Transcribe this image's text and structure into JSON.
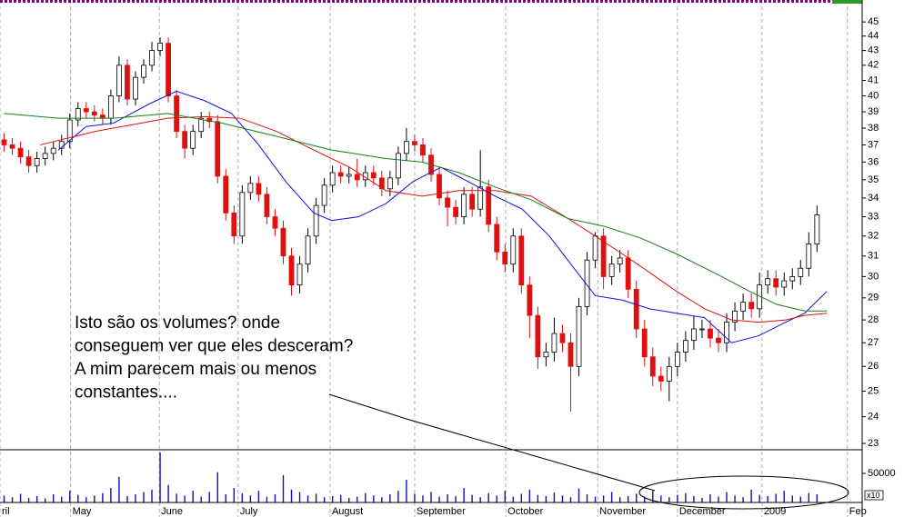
{
  "chart_data": [
    {
      "type": "candlestick",
      "log_y": true,
      "xlim": [
        -0.5,
        104.5
      ],
      "ylim": [
        22.77,
        46.6
      ],
      "yticks": [
        23,
        24,
        25,
        26,
        27,
        28,
        29,
        30,
        31,
        32,
        33,
        34,
        35,
        36,
        37,
        38,
        39,
        40,
        41,
        42,
        43,
        44,
        45
      ],
      "up_color": "#ffffff",
      "down_color": "#e01010",
      "ohlc": [
        [
          37.3,
          37.7,
          36.6,
          37
        ],
        [
          37,
          37.4,
          36.4,
          36.8
        ],
        [
          36.8,
          37.2,
          35.9,
          36.3
        ],
        [
          36.3,
          36.7,
          35.4,
          35.8
        ],
        [
          35.8,
          36.6,
          35.4,
          36.2
        ],
        [
          36.2,
          36.9,
          35.8,
          36.5
        ],
        [
          36.5,
          37.2,
          36.1,
          36.8
        ],
        [
          36.8,
          37.6,
          36.4,
          37.2
        ],
        [
          37.2,
          38.9,
          36.8,
          38.5
        ],
        [
          38.5,
          39.6,
          38.1,
          39.2
        ],
        [
          39.2,
          39.6,
          38.6,
          39
        ],
        [
          39,
          39.4,
          38.4,
          38.8
        ],
        [
          38.8,
          39.2,
          38.2,
          38.6
        ],
        [
          38.6,
          40.4,
          38.2,
          40
        ],
        [
          40,
          42.6,
          39.6,
          42
        ],
        [
          42,
          42.4,
          39.4,
          39.8
        ],
        [
          39.8,
          41.6,
          39.4,
          41.2
        ],
        [
          41.2,
          42.4,
          40.8,
          42
        ],
        [
          42,
          43.6,
          41.6,
          43
        ],
        [
          43,
          43.9,
          42.6,
          43.5
        ],
        [
          43.5,
          43.9,
          39.6,
          40
        ],
        [
          40,
          40.4,
          37.4,
          37.8
        ],
        [
          37.8,
          38.2,
          36.2,
          36.8
        ],
        [
          36.8,
          38.2,
          36.4,
          37.8
        ],
        [
          37.8,
          39,
          37.4,
          38.6
        ],
        [
          38.6,
          39,
          38,
          38.4
        ],
        [
          38.4,
          38.8,
          34.8,
          35.2
        ],
        [
          35.2,
          35.6,
          32.8,
          33.2
        ],
        [
          33.2,
          33.6,
          31.6,
          32
        ],
        [
          32,
          34.7,
          31.6,
          34.3
        ],
        [
          34.3,
          35.2,
          33.9,
          34.8
        ],
        [
          34.8,
          35.2,
          33.8,
          34.2
        ],
        [
          34.2,
          34.6,
          32.6,
          33
        ],
        [
          33,
          33.4,
          32,
          32.4
        ],
        [
          32.4,
          32.8,
          30.6,
          31
        ],
        [
          31,
          31.4,
          29.1,
          29.6
        ],
        [
          29.6,
          31,
          29.2,
          30.6
        ],
        [
          30.6,
          32.4,
          30.2,
          32
        ],
        [
          32,
          34,
          31.6,
          33.6
        ],
        [
          33.6,
          35.1,
          33.2,
          34.7
        ],
        [
          34.7,
          35.8,
          34.3,
          35.4
        ],
        [
          35.4,
          35.8,
          34.8,
          35.2
        ],
        [
          35.2,
          35.7,
          34.8,
          35.3
        ],
        [
          35.3,
          36.2,
          34.6,
          35
        ],
        [
          35,
          35.8,
          34.6,
          35.4
        ],
        [
          35.4,
          35.8,
          34.7,
          35.1
        ],
        [
          35.1,
          35.5,
          34.1,
          34.5
        ],
        [
          34.5,
          35.5,
          34.1,
          35.1
        ],
        [
          35.1,
          36.9,
          34.7,
          36.5
        ],
        [
          36.5,
          38,
          36.1,
          37.2
        ],
        [
          37.2,
          37.6,
          36.6,
          37
        ],
        [
          37,
          37.4,
          36,
          36.4
        ],
        [
          36.4,
          36.8,
          34.9,
          35.3
        ],
        [
          35.3,
          35.7,
          33.6,
          34
        ],
        [
          34,
          34.4,
          32.5,
          33.5
        ],
        [
          33.5,
          33.9,
          32.6,
          33
        ],
        [
          33,
          34.6,
          32.6,
          34.2
        ],
        [
          34.2,
          34.6,
          33,
          33.4
        ],
        [
          33.4,
          36.7,
          33,
          34.6
        ],
        [
          34.6,
          35,
          32.2,
          32.6
        ],
        [
          32.6,
          33,
          30.8,
          31.2
        ],
        [
          31.2,
          31.6,
          30.2,
          30.6
        ],
        [
          30.6,
          32.4,
          30.2,
          32
        ],
        [
          32,
          32.4,
          29.2,
          29.6
        ],
        [
          29.6,
          30,
          27.2,
          28.2
        ],
        [
          28.2,
          28.6,
          25.9,
          26.4
        ],
        [
          26.4,
          27,
          26,
          26.6
        ],
        [
          26.6,
          28.1,
          26.2,
          27.4
        ],
        [
          27.4,
          27.8,
          26.6,
          27
        ],
        [
          27,
          27.4,
          24.2,
          26
        ],
        [
          26,
          29,
          25.6,
          28.6
        ],
        [
          28.6,
          31.2,
          28.2,
          30.8
        ],
        [
          30.8,
          32.2,
          30.4,
          32
        ],
        [
          32,
          32.4,
          29.4,
          30
        ],
        [
          30,
          31,
          29.6,
          30.6
        ],
        [
          30.6,
          31.3,
          30.2,
          30.9
        ],
        [
          30.9,
          31.3,
          29,
          29.4
        ],
        [
          29.4,
          29.8,
          27.2,
          27.6
        ],
        [
          27.6,
          28,
          26,
          26.4
        ],
        [
          26.4,
          26.8,
          25.2,
          25.6
        ],
        [
          25.6,
          26,
          25,
          25.4
        ],
        [
          25.4,
          26.4,
          24.6,
          26
        ],
        [
          26,
          27,
          25.6,
          26.6
        ],
        [
          26.6,
          27.5,
          26.2,
          27.1
        ],
        [
          27.1,
          28.2,
          26.7,
          27.6
        ],
        [
          27.6,
          28,
          27.2,
          27.6
        ],
        [
          27.6,
          28,
          26.8,
          27.2
        ],
        [
          27.2,
          27.6,
          26.6,
          27
        ],
        [
          27,
          28.3,
          26.6,
          27.9
        ],
        [
          27.9,
          28.8,
          27.5,
          28.4
        ],
        [
          28.4,
          29.2,
          28,
          28.8
        ],
        [
          28.8,
          29.2,
          28.1,
          28.5
        ],
        [
          28.5,
          30.2,
          28.1,
          29.6
        ],
        [
          29.6,
          30.3,
          29.2,
          29.9
        ],
        [
          29.9,
          30.3,
          29.1,
          29.5
        ],
        [
          29.5,
          30.2,
          29.1,
          29.8
        ],
        [
          29.8,
          30.4,
          29.4,
          30
        ],
        [
          30,
          30.8,
          29.6,
          30.4
        ],
        [
          30.4,
          32.2,
          30,
          31.6
        ],
        [
          31.6,
          33.6,
          31.2,
          33.1
        ]
      ],
      "lines": [
        {
          "color": "#1010e0",
          "x": [
            6.6,
            10,
            13.3,
            17.7,
            21,
            24.4,
            27.7,
            31,
            34.3,
            37.7,
            39.9,
            43.2,
            46.5,
            49.8,
            53.2,
            56.5,
            59.8,
            63.1,
            66.4,
            69.8,
            72,
            75.3,
            78.6,
            81.9,
            85.3,
            88.6,
            91.9,
            95.2,
            97.5,
            100.2
          ],
          "values": [
            36.7,
            38.1,
            38.3,
            39.5,
            40.3,
            39.7,
            38.9,
            37,
            34.9,
            33.2,
            32.8,
            33,
            33.7,
            34.9,
            35.7,
            34.9,
            34.1,
            33.4,
            32,
            30.2,
            29.1,
            28.9,
            28.5,
            28.3,
            28.1,
            27,
            27.3,
            27.9,
            28.3,
            29.3
          ]
        },
        {
          "color": "#e01010",
          "x": [
            4.4,
            11.1,
            16.6,
            19.9,
            24.4,
            28.8,
            33.2,
            37.7,
            42.1,
            46.5,
            50.9,
            55.4,
            59.8,
            64.2,
            68.7,
            72,
            75.3,
            78.6,
            81.9,
            85.3,
            88.6,
            91.9,
            95.2,
            97.5,
            100.2
          ],
          "values": [
            37,
            37.8,
            38.3,
            38.6,
            38.7,
            38.6,
            37.8,
            36.7,
            35.7,
            34.4,
            34.1,
            34.4,
            34.4,
            34.1,
            32.9,
            32,
            31.1,
            30.2,
            29.3,
            28.5,
            28,
            27.9,
            28,
            28.2,
            28.3
          ]
        },
        {
          "color": "#108010",
          "x": [
            0,
            6.6,
            13.3,
            19.9,
            26.6,
            33.2,
            39.9,
            46.5,
            50.9,
            55.4,
            59.8,
            64.2,
            68.7,
            73.1,
            77.5,
            81.9,
            86.4,
            90.8,
            94.1,
            97.5,
            100.2
          ],
          "values": [
            38.9,
            38.6,
            38.6,
            38.9,
            38.3,
            37.5,
            36.7,
            36.2,
            36,
            35.4,
            34.6,
            33.9,
            32.9,
            32.5,
            31.9,
            31.1,
            30.2,
            29.3,
            28.7,
            28.4,
            28.4
          ]
        }
      ],
      "annotations": [
        "Isto são os volumes? onde",
        "conseguem ver que eles desceram?",
        "A mim parecem mais ou menos",
        "constantes...."
      ]
    },
    {
      "type": "bar",
      "xlim": [
        -0.5,
        104.5
      ],
      "ylim": [
        0,
        90600
      ],
      "yticks": [
        50000
      ],
      "color": "#1010c0",
      "multiplier_label": "x10",
      "xticks": [
        {
          "value": -0.5,
          "label": "ril"
        },
        {
          "value": 8.1,
          "label": "May"
        },
        {
          "value": 18.9,
          "label": "June"
        },
        {
          "value": 28.5,
          "label": "July"
        },
        {
          "value": 39.7,
          "label": "August"
        },
        {
          "value": 50,
          "label": "September"
        },
        {
          "value": 61.1,
          "label": "October"
        },
        {
          "value": 72.3,
          "label": "November"
        },
        {
          "value": 82,
          "label": "December"
        },
        {
          "value": 92.3,
          "label": "2009"
        },
        {
          "value": 102.7,
          "label": "Feb"
        }
      ],
      "values": [
        12000,
        9000,
        15000,
        8000,
        11000,
        7000,
        14000,
        10000,
        20000,
        13000,
        9000,
        12000,
        16000,
        25000,
        44000,
        11000,
        14000,
        18000,
        22000,
        86000,
        30000,
        15000,
        12000,
        20000,
        10000,
        18000,
        52000,
        14000,
        25000,
        16000,
        12000,
        20000,
        10000,
        14000,
        47000,
        22000,
        18000,
        12000,
        15000,
        9000,
        11000,
        13000,
        8000,
        10000,
        16000,
        12000,
        9000,
        14000,
        20000,
        39000,
        15000,
        12000,
        18000,
        10000,
        14000,
        11000,
        25000,
        13000,
        9000,
        16000,
        12000,
        20000,
        10000,
        15000,
        22000,
        13000,
        11000,
        17000,
        12000,
        9000,
        24000,
        14000,
        10000,
        12000,
        18000,
        9000,
        11000,
        15000,
        10000,
        20000,
        12000,
        9000,
        13000,
        16000,
        11000,
        8000,
        14000,
        10000,
        18000,
        12000,
        9000,
        22000,
        13000,
        11000,
        15000,
        20000,
        12000,
        10000,
        16000,
        14000
      ]
    }
  ]
}
